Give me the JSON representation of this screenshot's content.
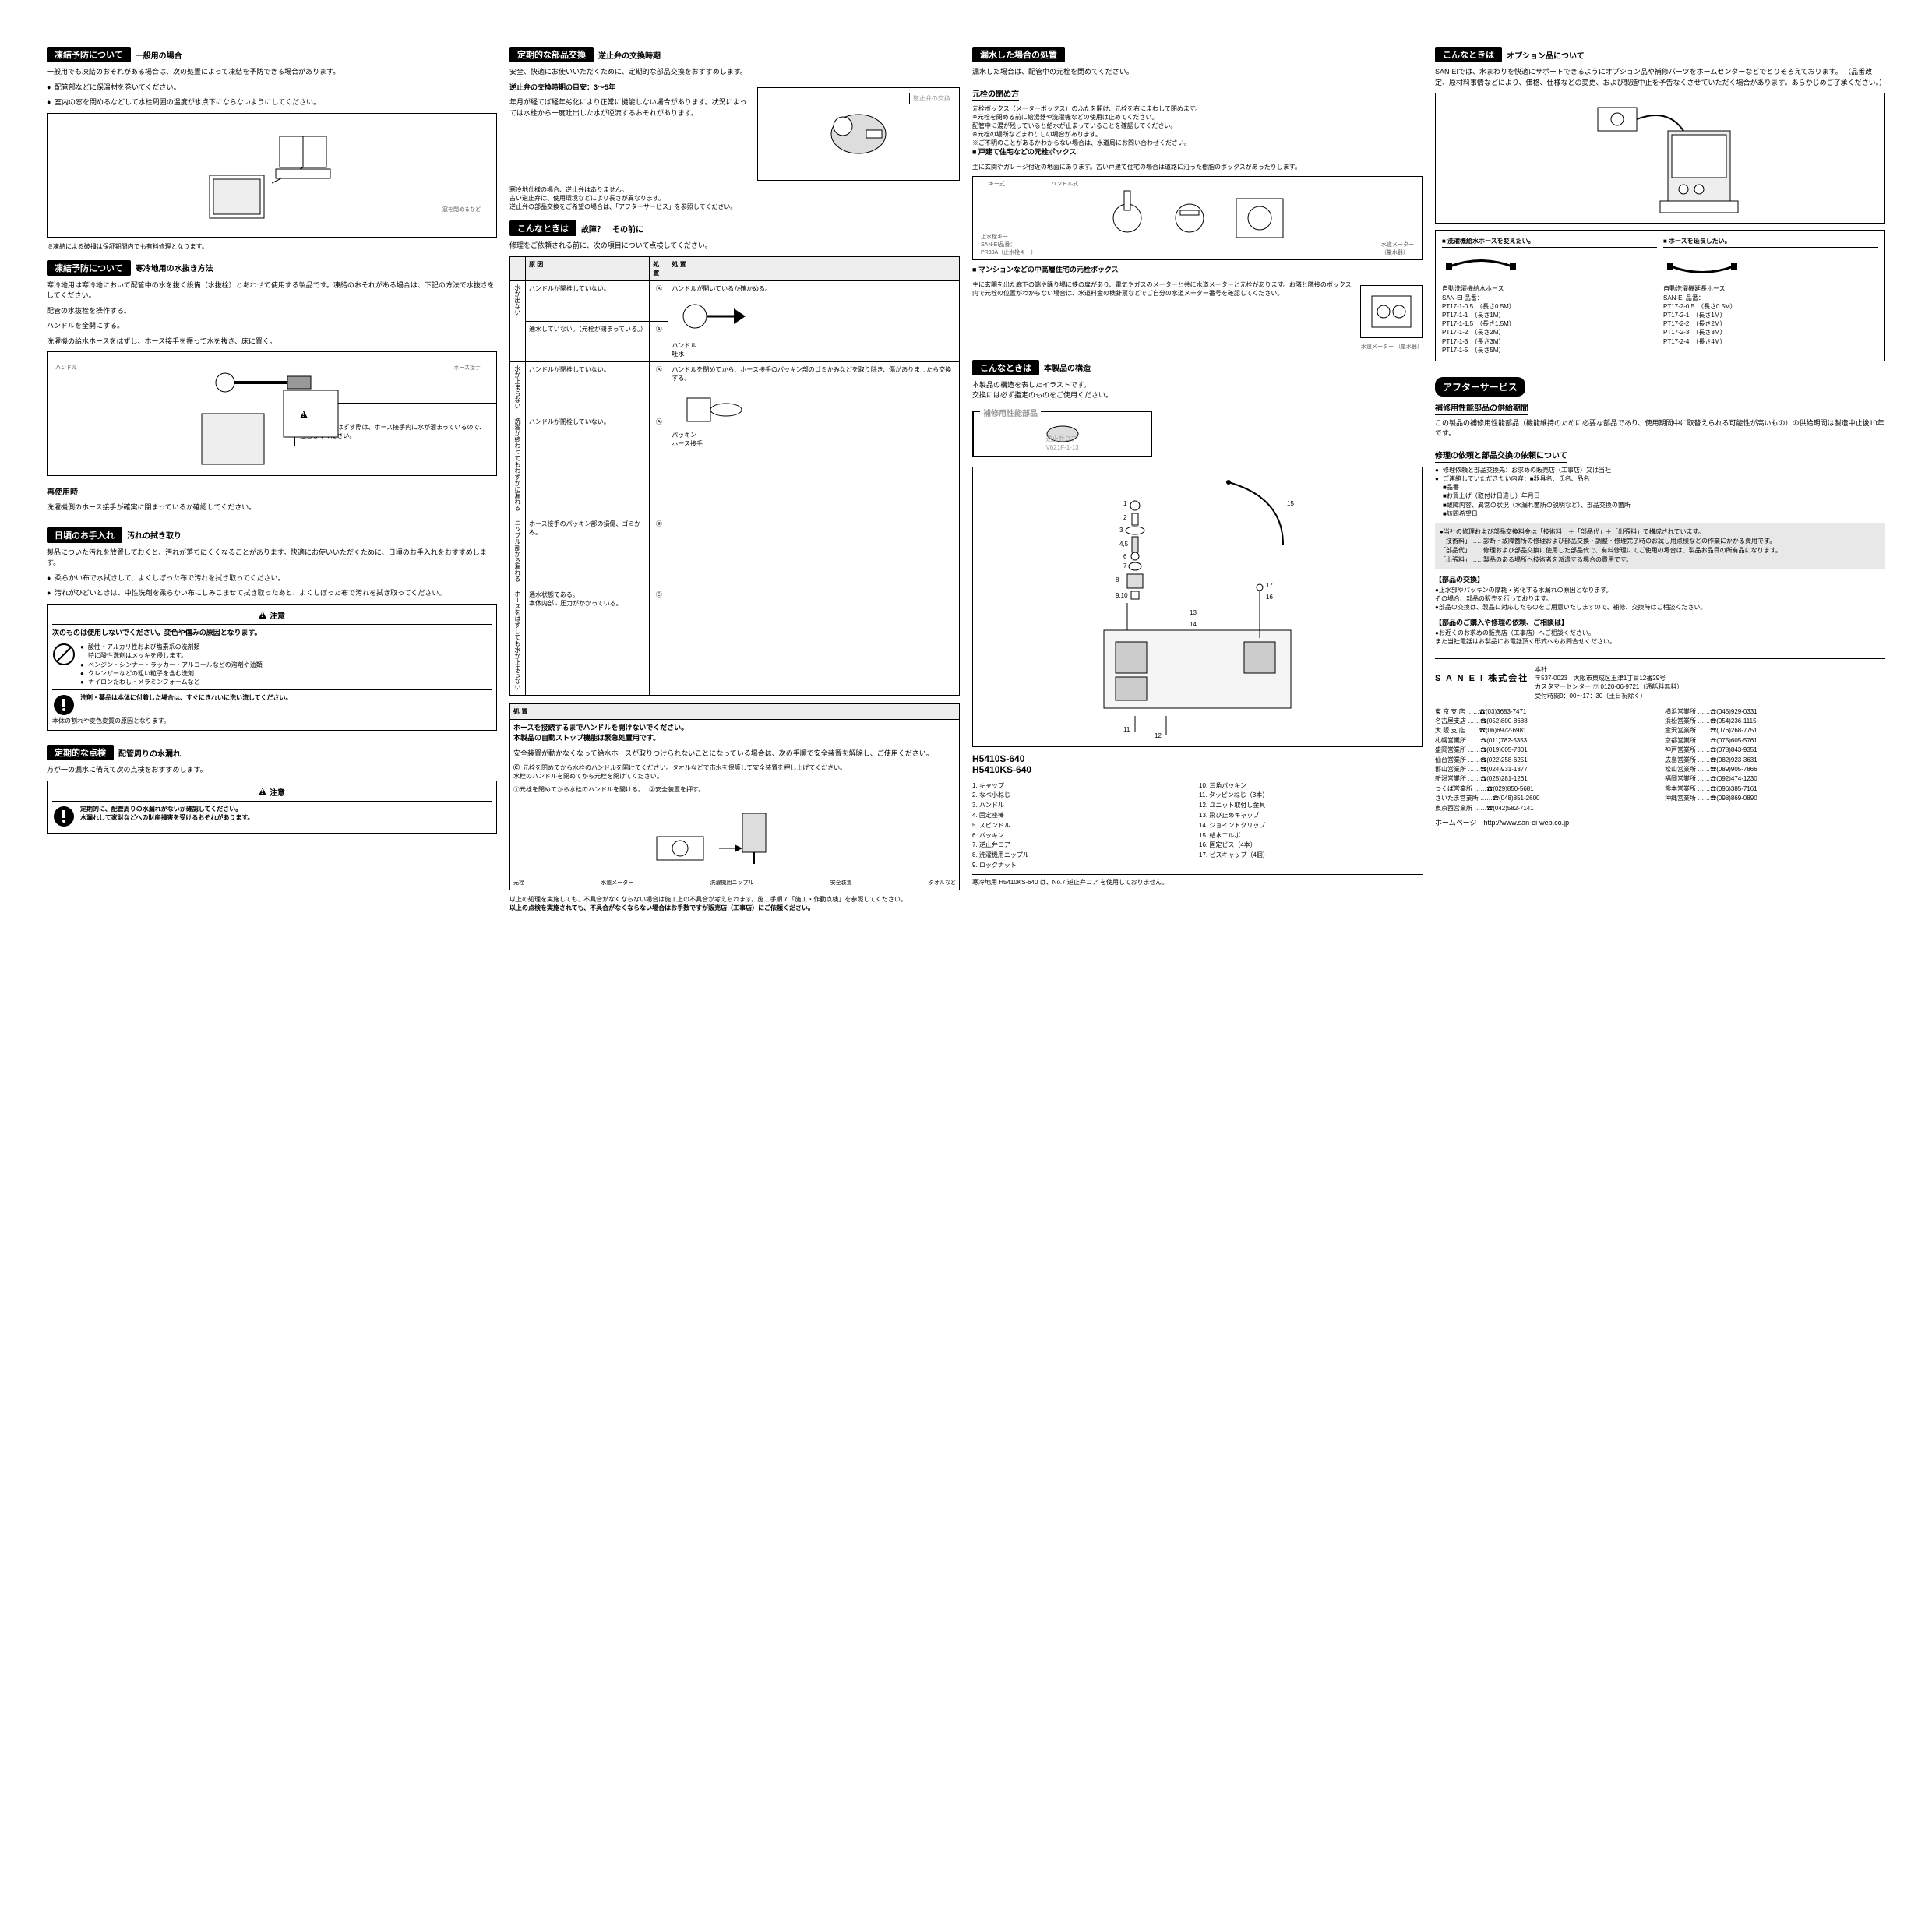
{
  "col1": {
    "s1": {
      "title": "凍結予防について",
      "subtitle": "一般用の場合",
      "intro": "一般用でも凍結のおそれがある場合は、次の処置によって凍結を予防できる場合があります。",
      "bullets": [
        "配管部などに保温材を巻いてください。",
        "室内の窓を閉めるなどして水栓周囲の温度が氷点下にならないようにしてください。"
      ],
      "caption": "窓を閉めるなど",
      "note": "※凍結による破損は保証期間内でも有料修理となります。"
    },
    "s2": {
      "title": "凍結予防について",
      "subtitle": "寒冷地用の水抜き方法",
      "intro": "寒冷地用は寒冷地において配管中の水を抜く設備（水抜栓）とあわせて使用する製品です。凍結のおそれがある場合は、下記の方法で水抜きをしてください。",
      "steps": [
        "配管の水抜栓を操作する。",
        "ハンドルを全開にする。",
        "洗濯機の給水ホースをはずし、ホース接手を振って水を抜き、床に置く。"
      ],
      "labels": {
        "handle": "ハンドル",
        "nipple": "ホース接手"
      },
      "caution_title": "注意",
      "caution_text": "ホース接手をはずす際は、ホース接手内に水が溜まっているので、注意してください。",
      "sub3_title": "再使用時",
      "sub3_text": "洗濯機側のホース接手が確実に閉まっているか確認してください。"
    },
    "s3": {
      "title": "日頃のお手入れ",
      "subtitle": "汚れの拭き取り",
      "intro": "製品についた汚れを放置しておくと、汚れが落ちにくくなることがあります。快適にお使いいただくために、日頃のお手入れをおすすめします。",
      "bullets": [
        "柔らかい布で水拭きして、よくしぼった布で汚れを拭き取ってください。",
        "汚れがひどいときは、中性洗剤を柔らかい布にしみこませて拭き取ったあと、よくしぼった布で汚れを拭き取ってください。"
      ],
      "caution_title": "注意",
      "caution_intro": "次のものは使用しないでください。変色や傷みの原因となります。",
      "caution_items": [
        "酸性・アルカリ性および塩素系の洗剤類\n特に酸性洗剤はメッキを侵します。",
        "ベンジン・シンナー・ラッカー・アルコールなどの溶剤や油類",
        "クレンザーなどの粗い粒子を含む洗剤",
        "ナイロンたわし・メラミンフォームなど"
      ],
      "caution_soap": "洗剤・薬品は本体に付着した場合は、すぐにきれいに洗い流してください。",
      "caution_foot": "本体の割れや変色変質の原因となります。"
    },
    "s4": {
      "title": "定期的な点検",
      "subtitle": "配管周りの水漏れ",
      "intro": "万が一の漏水に備えて次の点検をおすすめします。",
      "caution_title": "注意",
      "caution_text": "定期的に、配管周りの水漏れがないか確認してください。\n水漏れして家財などへの財産損害を受けるおそれがあります。"
    }
  },
  "col2": {
    "s1": {
      "title": "定期的な部品交換",
      "subtitle": "逆止弁の交換時期",
      "intro": "安全、快適にお使いいただくために、定期的な部品交換をおすすめします。",
      "text1": "逆止弁の交換時期の目安：3～5年",
      "text2": "年月が経てば経年劣化により正常に機能しない場合があります。状況によっては水栓から一度吐出した水が逆流するおそれがあります。",
      "label": "逆止弁の交換",
      "notes": [
        "寒冷地仕様の場合、逆止弁はありません。",
        "古い逆止弁は、使用環境などにより長さが異なります。",
        "逆止弁の部品交換をご希望の場合は、「アフターサービス」を参照してください。"
      ]
    },
    "s2": {
      "title": "こんなときは",
      "subtitle": "故障？　その前に",
      "intro": "修理をご依頼される前に、次の項目について点検してください。",
      "table": {
        "head": [
          "原 因",
          "処置",
          "処 置"
        ],
        "rows": [
          {
            "g": "水が出ない",
            "c": "Ⓐ",
            "r": "ハンドルが開栓していない。",
            "p": "ハンドルが開いているか確かめる。"
          },
          {
            "g": "",
            "c": "Ⓐ",
            "r": "通水していない。（元栓が閉まっている。）",
            "p": "ハンドル\n吐水"
          },
          {
            "g": "水が止まらない",
            "c": "Ⓐ",
            "r": "ハンドルが閉栓していない。",
            "p": ""
          },
          {
            "g": "洗濯が終わってもわずかに漏れる",
            "c": "Ⓐ",
            "r": "ハンドルが閉栓していない。",
            "p": "ハンドルを閉めてから、ホース接手のパッキン部のゴミかみなどを取り除き、傷がありましたら交換する。"
          },
          {
            "g": "ニップル部から漏れる",
            "c": "Ⓑ",
            "r": "ホース接手のパッキン部の損傷、ゴミかみ。",
            "p": "パッキン\nホース接手"
          },
          {
            "g": "ホースをはずしても水が止まらない",
            "c": "",
            "r": "通水状態である。\n本体内部に圧力がかかっている。",
            "p": ""
          }
        ]
      },
      "proc_head": "処 置",
      "proc_intro": "ホースを接続するまでハンドルを開けないでください。\n本製品の自動ストップ機能は緊急処置用です。",
      "proc_text": "安全装置が動かなくなって給水ホースが取りつけられないことになっている場合は、次の手順で安全装置を解除し、ご使用ください。",
      "proc_steps": [
        "元栓を閉めてから水栓のハンドルを開けてください。タオルなどで市水を保護して安全装置を押し上げてください。",
        "水栓のハンドルを閉めてから元栓を開けてください。"
      ],
      "proc_labels": {
        "a": "①元栓を閉めてから水栓のハンドルを開ける。",
        "b": "②安全装置を押す。"
      },
      "dlabels": {
        "tap": "元栓",
        "nipple": "洗濯機用ニップル",
        "safety": "安全装置",
        "towel": "タオルなど",
        "meter": "水道メーター"
      },
      "foot1": "以上の処理を実施しても、不具合がなくならない場合は施工上の不具合が考えられます。施工手順７「施工・作動点検」を参照してください。",
      "foot2": "以上の点検を実施されても、不具合がなくならない場合はお手数ですが販売店（工事店）にご依頼ください。"
    }
  },
  "col3": {
    "s1": {
      "title": "漏水した場合の処置",
      "intro": "漏水した場合は、配管中の元栓を閉めてください。",
      "sub": "元栓の閉め方",
      "text1": "元栓ボックス（メーターボックス）のふたを開け、元栓を右にまわして閉めます。\n※元栓を閉める前に給湯器や洗濯機などの使用は止めてください。\n配管中に湯が残っていると給水が止まっていることを確認してください。\n※元栓の場所などまわりしの場合があります。\n※ご不明のことがあるかわからない場合は、水道局にお問い合わせください。",
      "sub2": "■ 戸建て住宅などの元栓ボックス",
      "text2": "主に玄関やガレージ付近の地面にあります。古い戸建て住宅の場合は道路に沿った樹脂のボックスがあったりします。",
      "labels": {
        "key": "キー式",
        "knob": "ハンドル式",
        "stopkey": "止水栓キー\nSAN-EI品番：\nPR30A（止水栓キー）",
        "meter": "水道メーター\n（量水器）"
      },
      "sub3": "■ マンションなどの中高層住宅の元栓ボックス",
      "text3": "主に玄関を出た廊下の端や踊り場に鉄の扉があり、電気やガスのメーターと共に水道メーターと元栓があります。お隣と隣接のボックス内で元栓の位置がわからない場合は、水道料金の検針票などでご自分の水道メーター番号を確認してください。"
    },
    "s2": {
      "title": "こんなときは",
      "subtitle": "本製品の構造",
      "intro": "本製品の構造を表したイラストです。\n交換には必ず指定のものをご使用ください。",
      "replace_label": "補修用性能部品",
      "replace_text": "逆止弁コア\nV621F-1-13",
      "tap_label": "洗濯機用水栓",
      "models": "H5410S-640\nH5410KS-640",
      "parts": [
        "キャップ",
        "なべ小ねじ",
        "ハンドル",
        "固定座棒",
        "スピンドル",
        "パッキン",
        "逆止弁コア",
        "洗濯機用ニップル",
        "ロックナット",
        "三角パッキン",
        "タッピンねじ（3本）",
        "ユニット取付し金具",
        "飛び止めキャップ",
        "ジョイントクリップ",
        "給水エルボ",
        "固定ビス（4本）",
        "ビスキャップ（4個）"
      ],
      "foot": "寒冷地用 H5410KS-640 は、No.7 逆止弁コア を使用しておりません。"
    }
  },
  "col4": {
    "s1": {
      "title": "こんなときは",
      "subtitle": "オプション品について",
      "intro": "SAN-EIでは、水まわりを快適にサポートできるようにオプション品や補修パーツをホームセンターなどでとりそろえております。\n（品番改定、原材料事情などにより、価格、仕様などの変更、および製造中止を予告なくさせていただく場合があります。あらかじめご了承ください。）",
      "opt_a_head": "■ 洗濯機給水ホースを変えたい。",
      "opt_a": [
        "自動洗濯機給水ホース",
        "SAN-EI 品番：",
        "PT17-1-0.5　（長さ0.5M）",
        "PT17-1-1　（長さ1M）",
        "PT17-1-1.5　（長さ1.5M）",
        "PT17-1-2　（長さ2M）",
        "PT17-1-3　（長さ3M）",
        "PT17-1-5　（長さ5M）"
      ],
      "opt_b_head": "■ ホースを延長したい。",
      "opt_b": [
        "自動洗濯機延長ホース",
        "SAN-EI 品番：",
        "PT17-2-0.5　（長さ0.5M）",
        "PT17-2-1　（長さ1M）",
        "PT17-2-2　（長さ2M）",
        "PT17-2-3　（長さ3M）",
        "PT17-2-4　（長さ4M）"
      ]
    },
    "s2": {
      "title": "アフターサービス",
      "sub1": "補修用性能部品の供給期間",
      "text1": "この製品の補修用性能部品（機能維持のために必要な部品であり、使用期間中に取替えられる可能性が高いもの）の供給期間は製造中止後10年です。",
      "sub2": "修理の依頼と部品交換の依頼について",
      "text2_bullets": [
        "修理依頼と部品交換先：お求めの販売店（工事店）又は当社",
        "ご連絡していただきたい内容：■器具名、氏名、品名\n■品番\n■お買上げ（取付け日違し）年月日\n■故障内容、異常の状況（水漏れ箇所の説明など）、部品交換の箇所\n■訪問希望日"
      ],
      "box": "●当社の修理および部品交換料金は「技術料」＋「部品代」＋「出張料」で構成されています。\n「技術料」……診断・故障箇所の修理および部品交換・調整・修理完了時のお試し用点検などの作業にかかる費用です。\n「部品代」……修理および部品交換に使用した部品代で、有料修理にてご使用の場合は、製品お品目の所有品になります。\n「出張料」……製品のある場所へ技術者を派遣する場合の費用です。",
      "sub3_head": "【部品の交換】",
      "sub3_text": "●止水部やパッキンの摩耗・劣化する水漏れの原因となります。\nその場合、部品の販売を行っております。\n●部品の交換は、製品に対応したものをご用意いたしますので、補修、交換時はご相談ください。",
      "sub4_head": "【部品のご購入や修理の依頼、ご相談は】",
      "sub4_text": "●お近くのお求めの販売店（工事店）へご相談ください。\nまた当社電話はお製品にお電話頂く形式へもお問合せください。"
    },
    "contact": {
      "company": "S A N E I  株式会社",
      "addr": "本社\n〒537-0023　大阪市東成区玉津1丁目12番29号\nカスタマーセンター ☏ 0120-06-9721（通話料無料）\n受付時間9：00～17：30（土日祝除く）",
      "offices": [
        [
          "東 京 支 店 ……☎(03)3683-7471",
          "横浜営業所 ……☎(045)929-0331"
        ],
        [
          "名古屋支店 ……☎(052)800-8688",
          "浜松営業所 ……☎(054)236-1115"
        ],
        [
          "大 阪 支 店 ……☎(06)6972-6981",
          "金沢営業所 ……☎(076)268-7751"
        ],
        [
          "札幌営業所 ……☎(011)782-5353",
          "京都営業所 ……☎(075)605-5761"
        ],
        [
          "盛岡営業所 ……☎(019)605-7301",
          "神戸営業所 ……☎(078)843-9351"
        ],
        [
          "仙台営業所 ……☎(022)258-6251",
          "広島営業所 ……☎(082)923-3631"
        ],
        [
          "郡山営業所 ……☎(024)931-1377",
          "松山営業所 ……☎(089)905-7866"
        ],
        [
          "新潟営業所 ……☎(025)281-1261",
          "福岡営業所 ……☎(092)474-1230"
        ],
        [
          "つくば営業所 ……☎(029)850-5681",
          "熊本営業所 ……☎(096)385-7161"
        ],
        [
          "さいたま営業所 ……☎(048)851-2600",
          "沖縄営業所 ……☎(098)869-0890"
        ],
        [
          "東京西営業所 ……☎(042)582-7141",
          ""
        ]
      ],
      "url": "ホームページ　http://www.san-ei-web.co.jp"
    }
  }
}
